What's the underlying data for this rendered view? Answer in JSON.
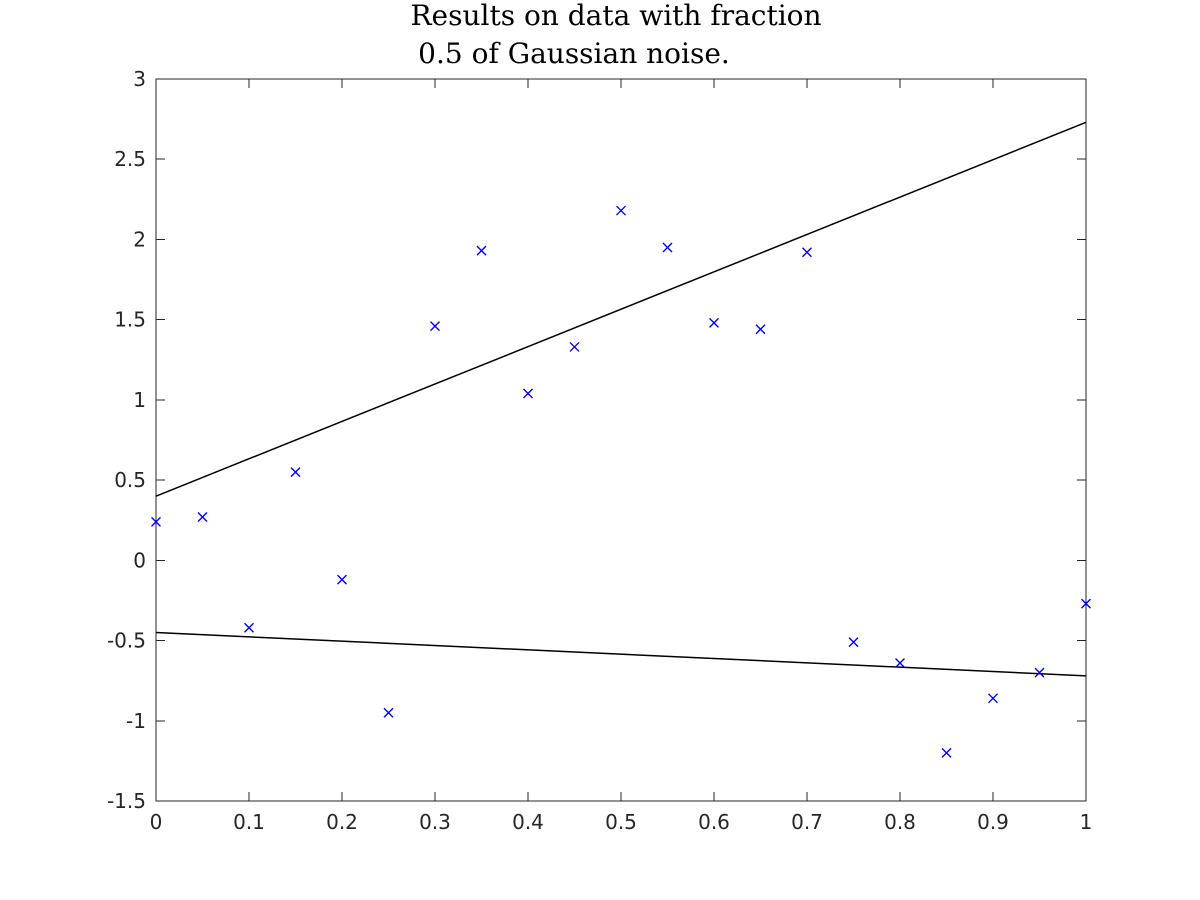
{
  "chart_data": {
    "type": "scatter",
    "title_lines": [
      "Results on data with fraction",
      "0.5 of Gaussian noise."
    ],
    "xlabel": "",
    "ylabel": "",
    "xlim": [
      0,
      1
    ],
    "ylim": [
      -1.5,
      3
    ],
    "x_ticks": [
      0,
      0.1,
      0.2,
      0.3,
      0.4,
      0.5,
      0.6,
      0.7,
      0.8,
      0.9,
      1
    ],
    "x_tick_labels": [
      "0",
      "0.1",
      "0.2",
      "0.3",
      "0.4",
      "0.5",
      "0.6",
      "0.7",
      "0.8",
      "0.9",
      "1"
    ],
    "y_ticks": [
      -1.5,
      -1,
      -0.5,
      0,
      0.5,
      1,
      1.5,
      2,
      2.5,
      3
    ],
    "y_tick_labels": [
      "-1.5",
      "-1",
      "-0.5",
      "0",
      "0.5",
      "1",
      "1.5",
      "2",
      "2.5",
      "3"
    ],
    "grid": false,
    "points": {
      "marker": "x",
      "color": "#0000ff",
      "x": [
        0,
        0.05,
        0.1,
        0.15,
        0.2,
        0.25,
        0.3,
        0.35,
        0.4,
        0.45,
        0.5,
        0.55,
        0.6,
        0.65,
        0.7,
        0.75,
        0.8,
        0.85,
        0.9,
        0.95,
        1
      ],
      "y": [
        0.24,
        0.27,
        -0.42,
        0.55,
        -0.12,
        -0.95,
        1.46,
        1.93,
        1.04,
        1.33,
        2.18,
        1.95,
        1.48,
        1.44,
        1.92,
        -0.51,
        -0.64,
        -1.2,
        -0.86,
        -0.7,
        -0.27
      ]
    },
    "lines": [
      {
        "color": "#000000",
        "x": [
          0,
          1
        ],
        "y": [
          0.4,
          2.73
        ]
      },
      {
        "color": "#000000",
        "x": [
          0,
          1
        ],
        "y": [
          -0.45,
          -0.72
        ]
      }
    ]
  }
}
